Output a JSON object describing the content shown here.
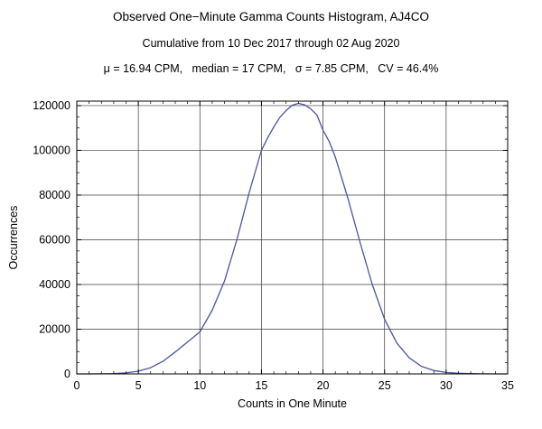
{
  "header": {
    "title": "Observed One−Minute Gamma Counts Histogram, AJ4CO",
    "subtitle": "Cumulative from 10 Dec 2017 through 02 Aug 2020",
    "stats": "μ = 16.94 CPM,   median = 17 CPM,   σ = 7.85 CPM,   CV = 46.4%"
  },
  "chart_data": {
    "type": "line",
    "title": "Observed One−Minute Gamma Counts Histogram, AJ4CO",
    "subtitle": "Cumulative from 10 Dec 2017 through 02 Aug 2020",
    "xlabel": "Counts in One Minute",
    "ylabel": "Occurrences",
    "xlim": [
      0,
      35
    ],
    "ylim": [
      0,
      122000
    ],
    "grid": true,
    "grid_color": "#3c3c3c",
    "line_color": "#4a54a0",
    "x_ticks": [
      0,
      5,
      10,
      15,
      20,
      25,
      30,
      35
    ],
    "x_tick_labels": [
      "0",
      "5",
      "10",
      "15",
      "20",
      "25",
      "30",
      "35"
    ],
    "y_ticks": [
      0,
      20000,
      40000,
      60000,
      80000,
      100000,
      120000
    ],
    "y_tick_labels": [
      "0",
      "20000",
      "40000",
      "60000",
      "80000",
      "100000",
      "120000"
    ],
    "x_minor_step": 1,
    "y_minor_step": 5000,
    "stats": {
      "mu_cpm": 16.94,
      "median_cpm": 17,
      "sigma_cpm": 7.85,
      "cv_percent": 46.4
    },
    "series": [
      {
        "name": "occurrences",
        "x": [
          0,
          1,
          2,
          3,
          4,
          5,
          6,
          7,
          8,
          9,
          10,
          11,
          12,
          13,
          14,
          15,
          15.5,
          16,
          16.5,
          17,
          17.5,
          18,
          18.5,
          19,
          19.5,
          20,
          20.5,
          21,
          22,
          23,
          24,
          25,
          26,
          27,
          28,
          29,
          30,
          31,
          32,
          33,
          34,
          35
        ],
        "y": [
          0,
          0,
          50,
          150,
          450,
          1200,
          2800,
          5600,
          9800,
          14300,
          18800,
          28500,
          41500,
          60000,
          81000,
          100000,
          105500,
          110500,
          114800,
          117800,
          120200,
          121000,
          120400,
          118600,
          115800,
          109000,
          104000,
          97000,
          79000,
          59000,
          40000,
          24500,
          13800,
          7200,
          3400,
          1500,
          650,
          280,
          120,
          50,
          0,
          0
        ]
      }
    ]
  }
}
